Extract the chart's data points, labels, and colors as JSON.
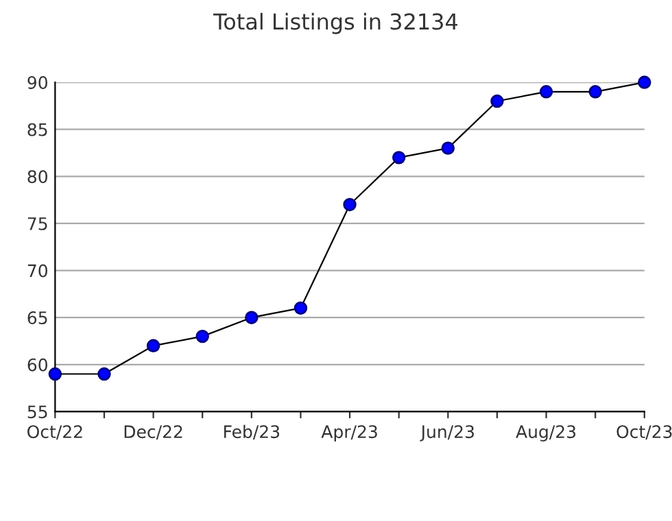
{
  "chart_data": {
    "type": "line",
    "title": "Total Listings in 32134",
    "categories": [
      "Oct/22",
      null,
      "Dec/22",
      null,
      "Feb/23",
      null,
      "Apr/23",
      null,
      "Jun/23",
      null,
      "Aug/23",
      null,
      "Oct/23"
    ],
    "series": [
      {
        "color": "#0000ff",
        "values": [
          59,
          59,
          62,
          63,
          65,
          66,
          77,
          82,
          83,
          88,
          89,
          89,
          90
        ]
      }
    ],
    "ylim": [
      55,
      90
    ],
    "yticks": [
      55,
      60,
      65,
      70,
      75,
      80,
      85,
      90
    ],
    "grid": "y",
    "marker": "circle",
    "line_style": "solid"
  }
}
